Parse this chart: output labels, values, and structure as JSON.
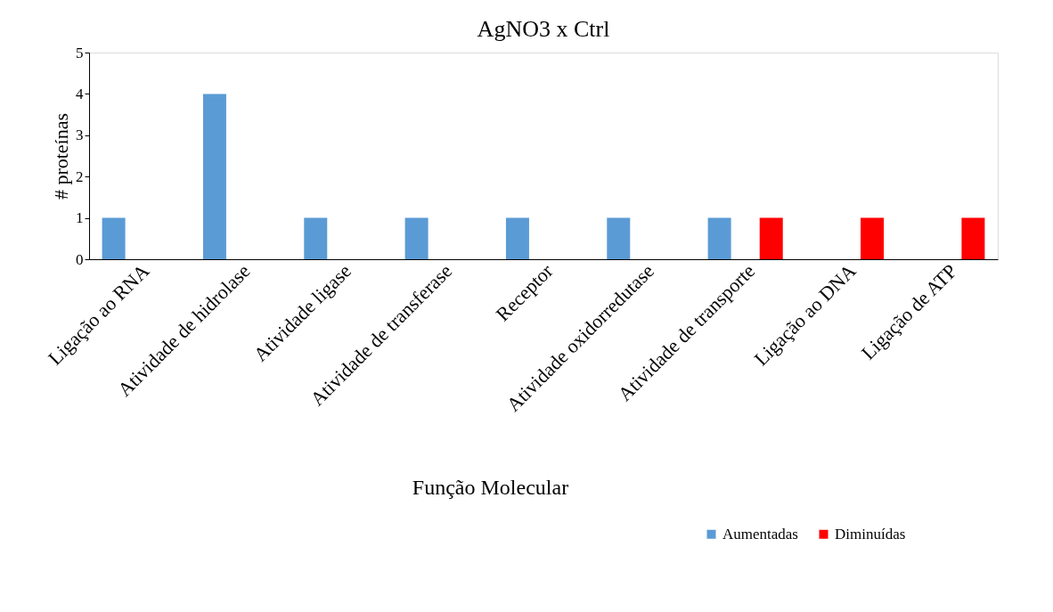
{
  "chart_data": {
    "type": "bar",
    "title": "AgNO3  x Ctrl",
    "xlabel": "Função Molecular",
    "ylabel": "# proteínas",
    "categories": [
      "Ligação ao RNA",
      "Atividade de hidrolase",
      "Atividade ligase",
      "Atividade de transferase",
      "Receptor",
      "Atividade oxidorredutase",
      "Atividade de transporte",
      "Ligação ao DNA",
      "Ligação de ATP"
    ],
    "series": [
      {
        "name": "Aumentadas",
        "color": "#5b9bd5",
        "values": [
          1,
          4,
          1,
          1,
          1,
          1,
          1,
          null,
          null
        ]
      },
      {
        "name": "Diminuídas",
        "color": "#ff0000",
        "values": [
          null,
          null,
          null,
          null,
          null,
          null,
          1,
          1,
          1
        ]
      }
    ],
    "ylim": [
      0,
      5
    ],
    "yticks": [
      0,
      1,
      2,
      3,
      4,
      5
    ],
    "grid": false,
    "legend": "bottom right"
  }
}
